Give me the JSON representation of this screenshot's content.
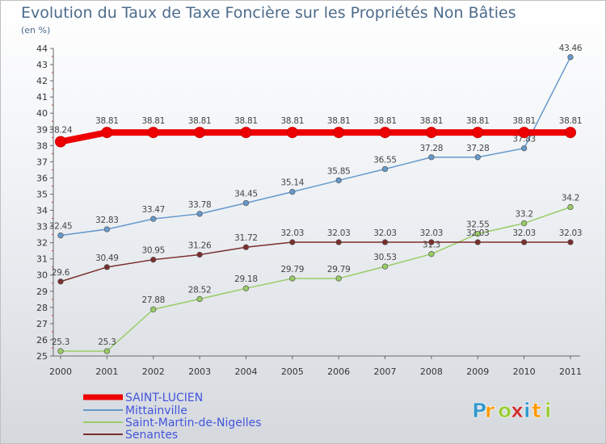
{
  "chart_data": {
    "type": "line",
    "title": "Evolution du Taux de Taxe Foncière sur les Propriétés Non Bâties",
    "subtitle": "(en %)",
    "xlabel": "",
    "ylabel": "",
    "ylim": [
      25,
      44
    ],
    "grid": false,
    "legend_position": "bottom-left",
    "x": [
      "2000",
      "2001",
      "2002",
      "2003",
      "2004",
      "2005",
      "2006",
      "2007",
      "2008",
      "2009",
      "2010",
      "2011"
    ],
    "yticks": [
      "25",
      "26",
      "27",
      "28",
      "29",
      "30",
      "31",
      "32",
      "33",
      "34",
      "35",
      "36",
      "37",
      "38",
      "39",
      "40",
      "41",
      "42",
      "43",
      "44"
    ],
    "series": [
      {
        "name": "SAINT-LUCIEN",
        "color": "#ee0000",
        "values": [
          38.24,
          38.81,
          38.81,
          38.81,
          38.81,
          38.81,
          38.81,
          38.81,
          38.81,
          38.81,
          38.81,
          38.81
        ],
        "labels": [
          "38.24",
          "38.81",
          "38.81",
          "38.81",
          "38.81",
          "38.81",
          "38.81",
          "38.81",
          "38.81",
          "38.81",
          "38.81",
          "38.81"
        ]
      },
      {
        "name": "Mittainville",
        "color": "#6699cc",
        "values": [
          32.45,
          32.83,
          33.47,
          33.78,
          34.45,
          35.14,
          35.85,
          36.55,
          37.28,
          37.28,
          37.83,
          43.46
        ],
        "labels": [
          "32.45",
          "32.83",
          "33.47",
          "33.78",
          "34.45",
          "35.14",
          "35.85",
          "36.55",
          "37.28",
          "37.28",
          "37.83",
          "43.46"
        ]
      },
      {
        "name": "Saint-Martin-de-Nigelles",
        "color": "#99cc66",
        "values": [
          25.3,
          25.3,
          27.88,
          28.52,
          29.18,
          29.79,
          29.79,
          30.53,
          31.3,
          32.55,
          33.2,
          34.2
        ],
        "labels": [
          "25.3",
          "25.3",
          "27.88",
          "28.52",
          "29.18",
          "29.79",
          "29.79",
          "30.53",
          "31.3",
          "32.55",
          "33.2",
          "34.2"
        ]
      },
      {
        "name": "Senantes",
        "color": "#7a2e2e",
        "values": [
          29.6,
          30.49,
          30.95,
          31.26,
          31.72,
          32.03,
          32.03,
          32.03,
          32.03,
          32.03,
          32.03,
          32.03
        ],
        "labels": [
          "29.6",
          "30.49",
          "30.95",
          "31.26",
          "31.72",
          "32.03",
          "32.03",
          "32.03",
          "32.03",
          "32.03",
          "32.03",
          "32.03"
        ]
      }
    ]
  },
  "watermark": {
    "text": "Proxiti",
    "colors": [
      "#3399cc",
      "#ff9900",
      "#99cc33",
      "#cc3333"
    ]
  }
}
